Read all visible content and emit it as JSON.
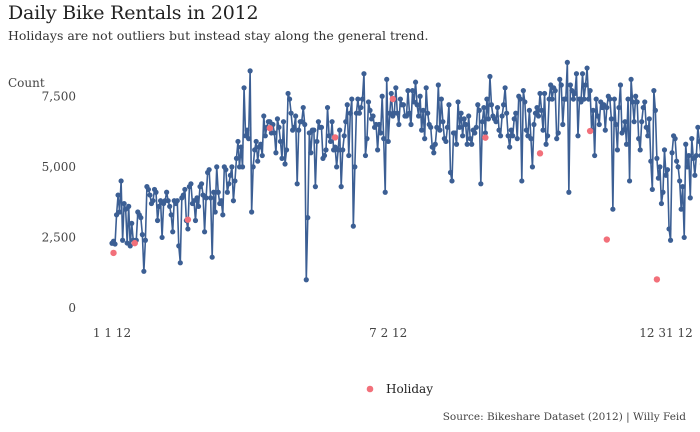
{
  "title": "Daily Bike Rentals in 2012",
  "subtitle": "Holidays are not outliers but instead stay along the general trend.",
  "caption": "Source: Bikeshare Dataset (2012) | Willy Feid",
  "colors": {
    "line": "#3c5f94",
    "holiday": "#f2707a",
    "background": "#ffffff"
  },
  "chart_data": {
    "type": "line",
    "title": "Daily Bike Rentals in 2012",
    "subtitle": "Holidays are not outliers but instead stay along the general trend.",
    "ylabel": "Count",
    "xlabel": "",
    "x_ticks": [
      {
        "day": 1,
        "label": "1 1 12"
      },
      {
        "day": 183,
        "label": "7 2 12"
      },
      {
        "day": 366,
        "label": "12 31 12"
      }
    ],
    "y_ticks": [
      0,
      2500,
      5000,
      7500
    ],
    "ylim": [
      0,
      8714
    ],
    "xlim": [
      1,
      366
    ],
    "grid": false,
    "legend": {
      "position": "bottom",
      "entries": [
        {
          "name": "Holiday",
          "color": "#f2707a"
        }
      ]
    },
    "series": [
      {
        "values": [
          2294,
          2364,
          2265,
          3300,
          4000,
          3400,
          4500,
          2400,
          3700,
          3500,
          2300,
          3600,
          2200,
          3000,
          2400,
          2300,
          2400,
          3400,
          3300,
          3200,
          2600,
          1300,
          2400,
          4300,
          4200,
          4000,
          3700,
          3800,
          4200,
          4100,
          3100,
          3600,
          3800,
          2500,
          3700,
          3800,
          4100,
          3800,
          3600,
          3300,
          2700,
          3800,
          3700,
          3800,
          2200,
          1600,
          3900,
          4000,
          4200,
          3100,
          2800,
          4300,
          4400,
          3700,
          3800,
          3100,
          3900,
          3600,
          4300,
          4400,
          4000,
          2700,
          3900,
          4800,
          4900,
          3900,
          1800,
          4100,
          3400,
          5000,
          4100,
          3700,
          3800,
          3300,
          5000,
          4900,
          4100,
          4400,
          4700,
          5000,
          3800,
          4500,
          5300,
          5900,
          5000,
          5700,
          5000,
          7800,
          6100,
          6300,
          6000,
          8400,
          3400,
          5000,
          5600,
          5900,
          5200,
          5700,
          5800,
          5400,
          6800,
          6100,
          6400,
          6600,
          6600,
          6200,
          6500,
          6200,
          5500,
          6700,
          6400,
          5900,
          5300,
          6600,
          5100,
          5600,
          7600,
          7400,
          6900,
          6300,
          6400,
          6800,
          4400,
          6300,
          6600,
          6600,
          7100,
          6500,
          1000,
          3200,
          6200,
          5500,
          6300,
          6300,
          4300,
          5900,
          6600,
          6400,
          6400,
          5300,
          5400,
          5600,
          7100,
          6100,
          5900,
          6600,
          5600,
          5700,
          5000,
          5600,
          6300,
          4300,
          5600,
          6100,
          6600,
          7200,
          5400,
          6900,
          7400,
          2900,
          5000,
          6900,
          7400,
          6900,
          7100,
          7400,
          8300,
          5400,
          6000,
          7300,
          7000,
          6700,
          6800,
          6400,
          6500,
          5600,
          6500,
          6200,
          7500,
          6000,
          4100,
          8100,
          5900,
          6900,
          7600,
          6800,
          6900,
          7800,
          6900,
          6500,
          7400,
          7200,
          7200,
          6800,
          6800,
          7700,
          6900,
          6500,
          7700,
          7300,
          8000,
          7200,
          6800,
          7500,
          6300,
          7000,
          6000,
          7800,
          6900,
          6500,
          6400,
          5700,
          5500,
          5800,
          6400,
          7900,
          6300,
          7400,
          6600,
          6000,
          5900,
          6400,
          7200,
          4800,
          4500,
          6200,
          6200,
          5800,
          7300,
          6400,
          6900,
          6100,
          6700,
          6500,
          5800,
          6800,
          6000,
          5800,
          6300,
          6200,
          6400,
          7200,
          7000,
          4400,
          6600,
          7100,
          6200,
          7400,
          6700,
          8200,
          7200,
          6800,
          6700,
          6600,
          7100,
          6300,
          6100,
          6800,
          7200,
          7800,
          6900,
          6100,
          5700,
          6300,
          6100,
          6700,
          6900,
          6000,
          7500,
          7400,
          4500,
          7700,
          7300,
          6300,
          6100,
          7000,
          6000,
          5000,
          6500,
          6900,
          7100,
          6800,
          7600,
          7000,
          6300,
          7600,
          5800,
          6100,
          7400,
          7900,
          7400,
          7800,
          7700,
          6000,
          6200,
          8100,
          7900,
          6500,
          7400,
          7400,
          8700,
          4100,
          7900,
          7700,
          7400,
          7600,
          8300,
          6100,
          7400,
          7300,
          8300,
          7400,
          7900,
          8500,
          7400,
          7700,
          6300,
          7000,
          5400,
          7400,
          6800,
          6500,
          7300,
          7100,
          7200,
          6300,
          7100,
          7500,
          7400,
          6700,
          3500,
          7400,
          6500,
          5600,
          7100,
          7900,
          6200,
          6300,
          6600,
          5800,
          7400,
          4500,
          8100,
          7300,
          6600,
          7500,
          7300,
          6000,
          5600,
          6600,
          7100,
          7300,
          6400,
          6100,
          6700,
          5200,
          4200,
          7700,
          7000,
          5300,
          4600,
          5000,
          3700,
          4100,
          5600,
          4700,
          4900,
          2800,
          2400,
          5500,
          6100,
          6000,
          5200,
          5000,
          4500,
          3500,
          4300,
          2500,
          5800,
          5000,
          5400,
          3900,
          6000,
          5300,
          4700,
          5400,
          6400,
          5900,
          5400,
          5100,
          4300,
          4800,
          3300,
          5600,
          5500,
          5700,
          5100,
          6100,
          5300,
          5700,
          4900,
          5600,
          5400,
          5800,
          5400,
          5100,
          4900,
          5600,
          5800,
          5300,
          4500,
          4100,
          3500,
          1800,
          1700,
          2600,
          2100,
          3100,
          1000,
          500,
          2700
        ]
      }
    ],
    "holidays": [
      {
        "day": 2,
        "value": 1951
      },
      {
        "day": 16,
        "value": 2298
      },
      {
        "day": 51,
        "value": 3129
      },
      {
        "day": 105,
        "value": 6370
      },
      {
        "day": 148,
        "value": 6043
      },
      {
        "day": 186,
        "value": 7403
      },
      {
        "day": 247,
        "value": 6034
      },
      {
        "day": 283,
        "value": 5478
      },
      {
        "day": 316,
        "value": 6269
      },
      {
        "day": 327,
        "value": 2425
      },
      {
        "day": 360,
        "value": 1013
      }
    ]
  }
}
